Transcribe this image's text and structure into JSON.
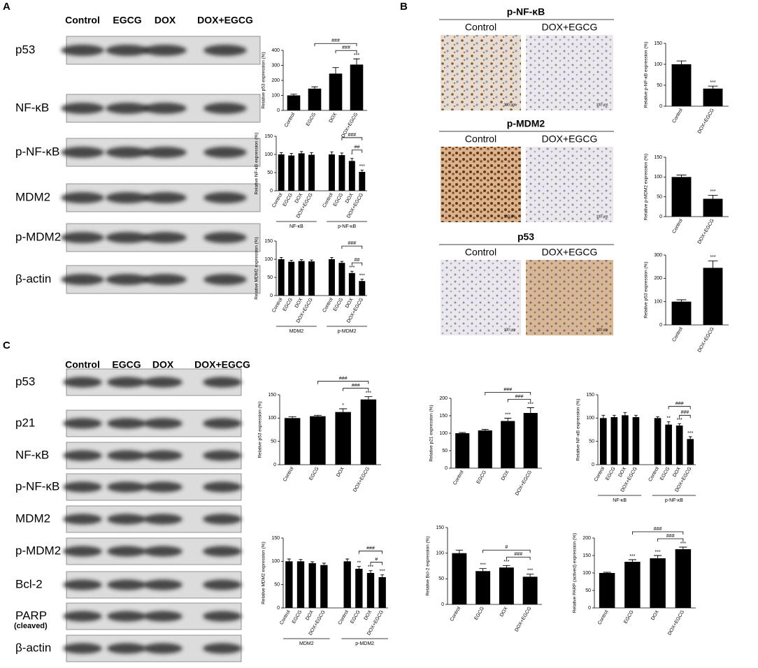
{
  "panels": [
    "A",
    "B",
    "C"
  ],
  "blot_a": {
    "lanes": [
      "Control",
      "EGCG",
      "DOX",
      "DOX+EGCG"
    ],
    "rows": [
      "p53",
      "NF-κB",
      "p-NF-κB",
      "MDM2",
      "p-MDM2",
      "β-actin"
    ]
  },
  "blot_c": {
    "lanes": [
      "Control",
      "EGCG",
      "DOX",
      "DOX+EGCG"
    ],
    "rows": [
      "p53",
      "p21",
      "NF-κB",
      "p-NF-κB",
      "MDM2",
      "p-MDM2",
      "Bcl-2",
      "PARP",
      "β-actin"
    ],
    "parp_note": "(cleaved)"
  },
  "ihc": [
    {
      "title": "p-NF-κB",
      "groups": [
        "Control",
        "DOX+EGCG"
      ]
    },
    {
      "title": "p-MDM2",
      "groups": [
        "Control",
        "DOX+EGCG"
      ]
    },
    {
      "title": "p53",
      "groups": [
        "Control",
        "DOX+EGCG"
      ]
    }
  ],
  "scale_bar": "100 μm",
  "chart_data": [
    {
      "type": "bar",
      "y_label": "Relative p53 expression (%)",
      "categories": [
        "Control",
        "EGCG",
        "DOX",
        "DOX+EGCG"
      ],
      "values": [
        100,
        145,
        245,
        305
      ],
      "errors": [
        8,
        12,
        40,
        38
      ],
      "ylim": [
        0,
        400
      ],
      "yticks": [
        0,
        100,
        200,
        300,
        400
      ],
      "color": "#000000",
      "stars": [
        null,
        null,
        null,
        "***"
      ],
      "brackets": [
        {
          "between": [
            1,
            3
          ],
          "label": "###"
        },
        {
          "between": [
            2,
            3
          ],
          "label": "###"
        }
      ]
    },
    {
      "type": "bar",
      "y_label": "Relative NF-κB expression (%)",
      "categories": [
        "Control",
        "EGCG",
        "DOX",
        "DOX+EGCG",
        "Control",
        "EGCG",
        "DOX",
        "DOX+EGCG"
      ],
      "groups": [
        "NF-κB",
        "p-NF-κB"
      ],
      "values": [
        100,
        97,
        103,
        99,
        100,
        98,
        82,
        52
      ],
      "errors": [
        5,
        6,
        5,
        6,
        7,
        6,
        7,
        5
      ],
      "ylim": [
        0,
        150
      ],
      "yticks": [
        0,
        50,
        100,
        150
      ],
      "color": "#000000",
      "stars": [
        null,
        null,
        null,
        null,
        null,
        null,
        "*",
        "***"
      ],
      "brackets": [
        {
          "between": [
            5,
            7
          ],
          "label": "###"
        },
        {
          "between": [
            6,
            7
          ],
          "label": "##"
        }
      ]
    },
    {
      "type": "bar",
      "y_label": "Relative MDM2 expression (%)",
      "categories": [
        "Control",
        "EGCG",
        "DOX",
        "DOX+EGCG",
        "Control",
        "EGCG",
        "DOX",
        "DOX+EGCG"
      ],
      "groups": [
        "MDM2",
        "p-MDM2"
      ],
      "values": [
        100,
        93,
        95,
        94,
        100,
        90,
        62,
        40
      ],
      "errors": [
        5,
        4,
        4,
        4,
        5,
        4,
        5,
        5
      ],
      "ylim": [
        0,
        150
      ],
      "yticks": [
        0,
        50,
        100,
        150
      ],
      "color": "#000000",
      "stars": [
        null,
        null,
        null,
        null,
        null,
        null,
        "***",
        "***"
      ],
      "brackets": [
        {
          "between": [
            5,
            7
          ],
          "label": "###"
        },
        {
          "between": [
            6,
            7
          ],
          "label": "##"
        }
      ]
    },
    {
      "type": "bar",
      "y_label": "Relative p-NF-κB expression (%)",
      "categories": [
        "Control",
        "DOX+EGCG"
      ],
      "values": [
        100,
        42
      ],
      "errors": [
        8,
        6
      ],
      "ylim": [
        0,
        150
      ],
      "yticks": [
        0,
        50,
        100,
        150
      ],
      "color": "#000000",
      "stars": [
        null,
        "***"
      ]
    },
    {
      "type": "bar",
      "y_label": "Relative p-MDM2 expression (%)",
      "categories": [
        "Control",
        "DOX+EGCG"
      ],
      "values": [
        100,
        45
      ],
      "errors": [
        5,
        9
      ],
      "ylim": [
        0,
        150
      ],
      "yticks": [
        0,
        50,
        100,
        150
      ],
      "color": "#000000",
      "stars": [
        null,
        "***"
      ]
    },
    {
      "type": "bar",
      "y_label": "Relative p53 expression (%)",
      "categories": [
        "Control",
        "DOX+EGCG"
      ],
      "values": [
        100,
        245
      ],
      "errors": [
        8,
        30
      ],
      "ylim": [
        0,
        300
      ],
      "yticks": [
        0,
        100,
        200,
        300
      ],
      "color": "#000000",
      "stars": [
        null,
        "***"
      ]
    },
    {
      "type": "bar",
      "y_label": "Relative p53 expression (%)",
      "categories": [
        "Control",
        "EGCG",
        "DOX",
        "DOX+EGCG"
      ],
      "values": [
        100,
        104,
        113,
        140
      ],
      "errors": [
        3,
        2,
        7,
        6
      ],
      "ylim": [
        0,
        150
      ],
      "yticks": [
        0,
        50,
        100,
        150
      ],
      "color": "#000000",
      "stars": [
        null,
        null,
        "*",
        "***"
      ],
      "brackets": [
        {
          "between": [
            1,
            3
          ],
          "label": "###"
        },
        {
          "between": [
            2,
            3
          ],
          "label": "###"
        }
      ]
    },
    {
      "type": "bar",
      "y_label": "Relative p21 expression (%)",
      "categories": [
        "Control",
        "EGCG",
        "DOX",
        "DOX+EGCG"
      ],
      "values": [
        100,
        108,
        135,
        158
      ],
      "errors": [
        2,
        3,
        8,
        15
      ],
      "ylim": [
        0,
        200
      ],
      "yticks": [
        0,
        50,
        100,
        150,
        200
      ],
      "color": "#000000",
      "stars": [
        null,
        null,
        "***",
        "***"
      ],
      "brackets": [
        {
          "between": [
            1,
            3
          ],
          "label": "###"
        },
        {
          "between": [
            2,
            3
          ],
          "label": "###"
        }
      ]
    },
    {
      "type": "bar",
      "y_label": "Relative NF-κB expression (%)",
      "categories": [
        "Control",
        "EGCG",
        "DOX",
        "DOX+EGCG",
        "Control",
        "EGCG",
        "DOX",
        "DOX+EGCG"
      ],
      "groups": [
        "NF-κB",
        "p-NF-κB"
      ],
      "values": [
        100,
        102,
        106,
        102,
        100,
        86,
        84,
        55
      ],
      "errors": [
        6,
        4,
        6,
        4,
        3,
        6,
        4,
        5
      ],
      "ylim": [
        0,
        150
      ],
      "yticks": [
        0,
        50,
        100,
        150
      ],
      "color": "#000000",
      "stars": [
        null,
        null,
        null,
        null,
        null,
        "**",
        "***",
        "***"
      ],
      "brackets": [
        {
          "between": [
            5,
            7
          ],
          "label": "###"
        },
        {
          "between": [
            6,
            7
          ],
          "label": "###"
        }
      ]
    },
    {
      "type": "bar",
      "y_label": "Relative MDM2 expression (%)",
      "categories": [
        "Control",
        "EGCG",
        "DOX",
        "DOX+EGCG",
        "Control",
        "EGCG",
        "DOX",
        "DOX+EGCG"
      ],
      "groups": [
        "MDM2",
        "p-MDM2"
      ],
      "values": [
        100,
        100,
        96,
        92,
        100,
        84,
        75,
        66
      ],
      "errors": [
        5,
        4,
        3,
        4,
        5,
        5,
        5,
        5
      ],
      "ylim": [
        0,
        150
      ],
      "yticks": [
        0,
        50,
        100,
        150
      ],
      "color": "#000000",
      "stars": [
        null,
        null,
        null,
        null,
        null,
        "**",
        "***",
        "***"
      ],
      "brackets": [
        {
          "between": [
            5,
            7
          ],
          "label": "###"
        },
        {
          "between": [
            6,
            7
          ],
          "label": "#"
        }
      ]
    },
    {
      "type": "bar",
      "y_label": "Relative Bcl-2 expression (%)",
      "categories": [
        "Control",
        "EGCG",
        "DOX",
        "DOX+EGCG"
      ],
      "values": [
        100,
        65,
        72,
        54
      ],
      "errors": [
        6,
        5,
        4,
        5
      ],
      "ylim": [
        0,
        150
      ],
      "yticks": [
        0,
        50,
        100,
        150
      ],
      "color": "#000000",
      "stars": [
        null,
        "***",
        "***",
        "***"
      ],
      "brackets": [
        {
          "between": [
            1,
            3
          ],
          "label": "#"
        },
        {
          "between": [
            2,
            3
          ],
          "label": "###"
        }
      ]
    },
    {
      "type": "bar",
      "y_label": "Relative PARP (actived) expression (%)",
      "categories": [
        "Control",
        "EGCG",
        "DOX",
        "DOX+EGCG"
      ],
      "values": [
        100,
        132,
        142,
        168
      ],
      "errors": [
        2,
        6,
        8,
        6
      ],
      "ylim": [
        0,
        200
      ],
      "yticks": [
        0,
        50,
        100,
        150,
        200
      ],
      "color": "#000000",
      "stars": [
        null,
        "***",
        "***",
        "***"
      ],
      "brackets": [
        {
          "between": [
            1,
            3
          ],
          "label": "###"
        },
        {
          "between": [
            2,
            3
          ],
          "label": "###"
        }
      ]
    }
  ]
}
